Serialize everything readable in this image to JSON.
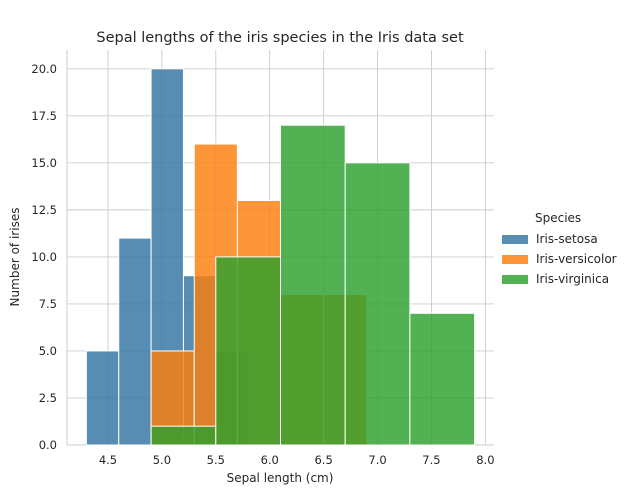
{
  "chart_data": {
    "type": "bar",
    "title": "Sepal lengths of the iris species in the Iris data set",
    "xlabel": "Sepal length (cm)",
    "ylabel": "Number of irises",
    "xlim": [
      4.12,
      8.08
    ],
    "ylim": [
      0,
      21
    ],
    "xticks": [
      "4.5",
      "5.0",
      "5.5",
      "6.0",
      "6.5",
      "7.0",
      "7.5",
      "8.0"
    ],
    "yticks": [
      "0.0",
      "2.5",
      "5.0",
      "7.5",
      "10.0",
      "12.5",
      "15.0",
      "17.5",
      "20.0"
    ],
    "grid": true,
    "legend": {
      "title": "Species",
      "placement": "right"
    },
    "series": [
      {
        "name": "Iris-setosa",
        "color": "#3274a1",
        "bins": [
          {
            "x0": 4.3,
            "x1": 4.6,
            "count": 5
          },
          {
            "x0": 4.6,
            "x1": 4.9,
            "count": 11
          },
          {
            "x0": 4.9,
            "x1": 5.2,
            "count": 20
          },
          {
            "x0": 5.2,
            "x1": 5.5,
            "count": 9
          },
          {
            "x0": 5.5,
            "x1": 5.8,
            "count": 5
          }
        ]
      },
      {
        "name": "Iris-versicolor",
        "color": "#fd7f0e",
        "bins": [
          {
            "x0": 4.9,
            "x1": 5.3,
            "count": 5
          },
          {
            "x0": 5.3,
            "x1": 5.7,
            "count": 16
          },
          {
            "x0": 5.7,
            "x1": 6.1,
            "count": 13
          },
          {
            "x0": 6.1,
            "x1": 6.5,
            "count": 8
          },
          {
            "x0": 6.5,
            "x1": 6.9,
            "count": 8
          }
        ]
      },
      {
        "name": "Iris-virginica",
        "color": "#2ca02c",
        "bins": [
          {
            "x0": 4.9,
            "x1": 5.5,
            "count": 1
          },
          {
            "x0": 5.5,
            "x1": 6.1,
            "count": 10
          },
          {
            "x0": 6.1,
            "x1": 6.7,
            "count": 17
          },
          {
            "x0": 6.7,
            "x1": 7.3,
            "count": 15
          },
          {
            "x0": 7.3,
            "x1": 7.9,
            "count": 7
          }
        ]
      }
    ]
  }
}
